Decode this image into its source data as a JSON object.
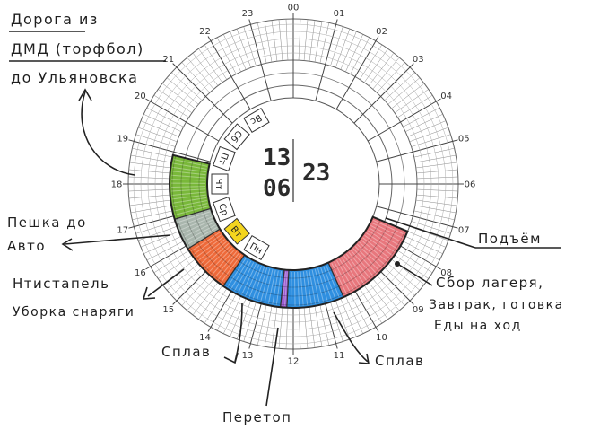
{
  "clock": {
    "hour_labels": [
      "00",
      "01",
      "02",
      "03",
      "04",
      "05",
      "06",
      "07",
      "08",
      "09",
      "10",
      "11",
      "12",
      "13",
      "14",
      "15",
      "16",
      "17",
      "18",
      "19",
      "20",
      "21",
      "22",
      "23"
    ],
    "days": [
      "Пн",
      "Вт",
      "Ср",
      "Чт",
      "Пт",
      "Сб",
      "Вс"
    ],
    "active_day": "Вт",
    "date": {
      "day": "13",
      "month": "06",
      "year": "23"
    }
  },
  "segments": [
    {
      "start": 7.5,
      "end": 10.4,
      "color": "#e8777d"
    },
    {
      "start": 10.4,
      "end": 12.2,
      "color": "#2f8fe0"
    },
    {
      "start": 12.2,
      "end": 12.4,
      "color": "#9b59d0"
    },
    {
      "start": 12.4,
      "end": 14.3,
      "color": "#2f8fe0"
    },
    {
      "start": 14.3,
      "end": 15.9,
      "color": "#ee6a3a"
    },
    {
      "start": 15.9,
      "end": 16.9,
      "color": "#a9b6ad"
    },
    {
      "start": 16.9,
      "end": 18.9,
      "color": "#79b83a"
    }
  ],
  "annotations": {
    "road": [
      "Дорога из",
      "ДМД (торфбол)",
      "до Ульяновска"
    ],
    "walk": [
      "Пешка до",
      "Авто"
    ],
    "antistapel": [
      "Нтистапель",
      "Уборка снаряги"
    ],
    "splav_left": "Сплав",
    "peretop": "Перетоп",
    "splav_right": "Сплав",
    "podyem": "Подъём",
    "camp": [
      "Сбор лагеря,",
      "Завтрак, готовка",
      "Еды на ход"
    ]
  }
}
